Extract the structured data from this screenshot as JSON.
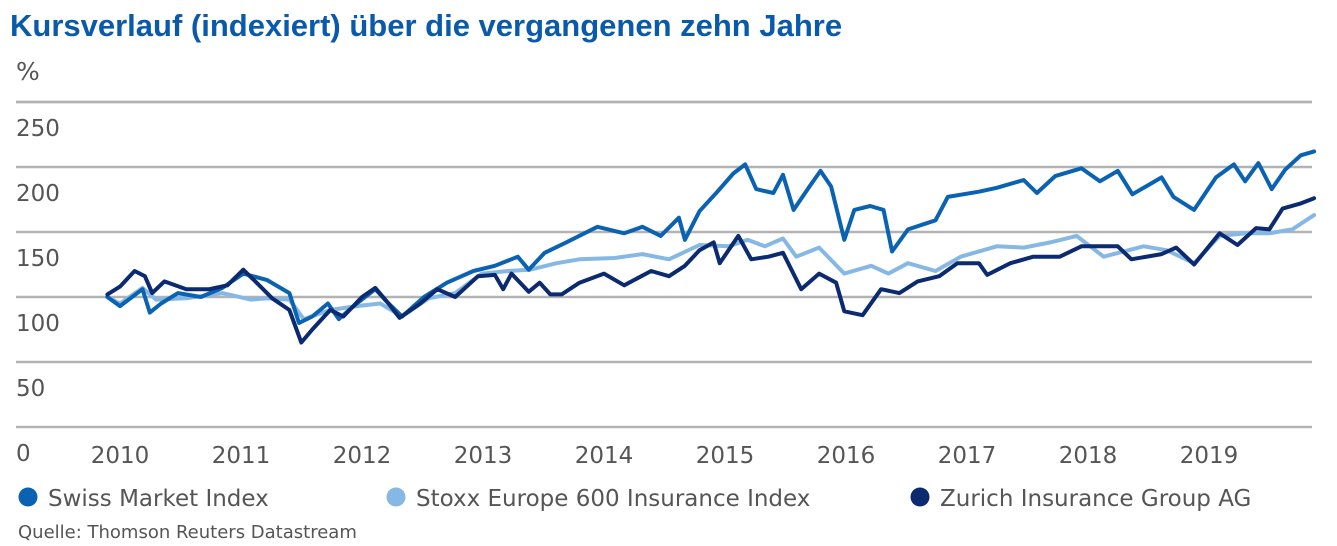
{
  "chart_data": {
    "type": "line",
    "title": "Kursverlauf (indexiert) über die vergangenen zehn Jahre",
    "ylabel": "%",
    "ylim": [
      0,
      250
    ],
    "yticks": [
      0,
      50,
      100,
      150,
      200,
      250
    ],
    "xticks": [
      "2010",
      "2011",
      "2012",
      "2013",
      "2014",
      "2015",
      "2016",
      "2017",
      "2018",
      "2019"
    ],
    "grid": true,
    "legend_position": "bottom",
    "source": "Quelle: Thomson Reuters Datastream",
    "series": [
      {
        "name": "Swiss Market Index",
        "color": "#0a62b3",
        "points": [
          [
            "2009-11-24",
            100
          ],
          [
            "2010-01-01",
            93
          ],
          [
            "2010-03-10",
            106
          ],
          [
            "2010-04-01",
            88
          ],
          [
            "2010-05-05",
            95
          ],
          [
            "2010-06-25",
            103
          ],
          [
            "2010-09-02",
            100
          ],
          [
            "2010-11-06",
            107
          ],
          [
            "2011-01-08",
            118
          ],
          [
            "2011-03-21",
            113
          ],
          [
            "2011-05-27",
            103
          ],
          [
            "2011-06-25",
            80
          ],
          [
            "2011-08-04",
            85
          ],
          [
            "2011-09-20",
            95
          ],
          [
            "2011-10-23",
            83
          ],
          [
            "2011-12-16",
            95
          ],
          [
            "2012-02-10",
            106
          ],
          [
            "2012-03-21",
            95
          ],
          [
            "2012-05-01",
            85
          ],
          [
            "2012-07-06",
            100
          ],
          [
            "2012-09-13",
            111
          ],
          [
            "2012-12-02",
            120
          ],
          [
            "2013-02-06",
            124
          ],
          [
            "2013-04-16",
            131
          ],
          [
            "2013-05-19",
            121
          ],
          [
            "2013-07-06",
            134
          ],
          [
            "2013-09-09",
            142
          ],
          [
            "2013-11-03",
            149
          ],
          [
            "2013-12-12",
            154
          ],
          [
            "2014-03-03",
            149
          ],
          [
            "2014-04-27",
            154
          ],
          [
            "2014-06-21",
            147
          ],
          [
            "2014-08-15",
            161
          ],
          [
            "2014-09-02",
            144
          ],
          [
            "2014-10-16",
            166
          ],
          [
            "2014-12-09",
            181
          ],
          [
            "2015-01-26",
            195
          ],
          [
            "2015-03-03",
            202
          ],
          [
            "2015-04-05",
            183
          ],
          [
            "2015-05-27",
            180
          ],
          [
            "2015-06-25",
            194
          ],
          [
            "2015-07-27",
            167
          ],
          [
            "2015-09-13",
            185
          ],
          [
            "2015-10-16",
            197
          ],
          [
            "2015-11-17",
            185
          ],
          [
            "2015-12-27",
            144
          ],
          [
            "2016-01-26",
            167
          ],
          [
            "2016-03-14",
            170
          ],
          [
            "2016-04-23",
            167
          ],
          [
            "2016-05-19",
            135
          ],
          [
            "2016-07-06",
            152
          ],
          [
            "2016-09-27",
            159
          ],
          [
            "2016-11-03",
            177
          ],
          [
            "2017-02-06",
            181
          ],
          [
            "2017-04-01",
            184
          ],
          [
            "2017-06-21",
            190
          ],
          [
            "2017-07-31",
            180
          ],
          [
            "2017-09-24",
            193
          ],
          [
            "2017-12-12",
            199
          ],
          [
            "2018-02-06",
            189
          ],
          [
            "2018-04-01",
            197
          ],
          [
            "2018-05-15",
            179
          ],
          [
            "2018-08-11",
            192
          ],
          [
            "2018-09-16",
            177
          ],
          [
            "2018-11-17",
            167
          ],
          [
            "2019-01-22",
            192
          ],
          [
            "2019-03-17",
            202
          ],
          [
            "2019-04-20",
            189
          ],
          [
            "2019-05-30",
            203
          ],
          [
            "2019-07-09",
            183
          ],
          [
            "2019-08-19",
            198
          ],
          [
            "2019-10-05",
            209
          ],
          [
            "2019-11-14",
            212
          ]
        ]
      },
      {
        "name": "Stoxx Europe 600 Insurance Index",
        "color": "#86b8e5",
        "points": [
          [
            "2009-11-24",
            100
          ],
          [
            "2010-01-01",
            95
          ],
          [
            "2010-03-10",
            107
          ],
          [
            "2010-04-20",
            98
          ],
          [
            "2010-07-20",
            99
          ],
          [
            "2010-11-06",
            103
          ],
          [
            "2011-01-30",
            98
          ],
          [
            "2011-03-21",
            99
          ],
          [
            "2011-05-27",
            98
          ],
          [
            "2011-07-09",
            83
          ],
          [
            "2011-09-27",
            90
          ],
          [
            "2011-12-16",
            93
          ],
          [
            "2012-02-25",
            95
          ],
          [
            "2012-05-01",
            85
          ],
          [
            "2012-07-20",
            99
          ],
          [
            "2012-10-08",
            103
          ],
          [
            "2012-12-27",
            118
          ],
          [
            "2013-03-17",
            120
          ],
          [
            "2013-05-23",
            121
          ],
          [
            "2013-08-11",
            126
          ],
          [
            "2013-10-19",
            129
          ],
          [
            "2014-02-02",
            130
          ],
          [
            "2014-04-27",
            133
          ],
          [
            "2014-07-16",
            129
          ],
          [
            "2014-10-16",
            140
          ],
          [
            "2015-01-12",
            139
          ],
          [
            "2015-03-10",
            144
          ],
          [
            "2015-05-01",
            139
          ],
          [
            "2015-06-25",
            145
          ],
          [
            "2015-08-04",
            131
          ],
          [
            "2015-10-12",
            138
          ],
          [
            "2015-12-27",
            118
          ],
          [
            "2016-03-17",
            124
          ],
          [
            "2016-05-08",
            118
          ],
          [
            "2016-07-06",
            126
          ],
          [
            "2016-09-27",
            120
          ],
          [
            "2016-12-12",
            131
          ],
          [
            "2017-04-01",
            139
          ],
          [
            "2017-06-21",
            138
          ],
          [
            "2017-09-09",
            142
          ],
          [
            "2017-11-28",
            147
          ],
          [
            "2018-02-17",
            131
          ],
          [
            "2018-06-18",
            139
          ],
          [
            "2018-08-26",
            136
          ],
          [
            "2018-11-17",
            126
          ],
          [
            "2019-02-02",
            147
          ],
          [
            "2019-04-23",
            149
          ],
          [
            "2019-07-02",
            149
          ],
          [
            "2019-09-09",
            152
          ],
          [
            "2019-11-14",
            163
          ]
        ]
      },
      {
        "name": "Zurich Insurance Group AG",
        "color": "#0b2a6f",
        "points": [
          [
            "2009-11-24",
            102
          ],
          [
            "2010-01-01",
            108
          ],
          [
            "2010-02-14",
            120
          ],
          [
            "2010-03-17",
            116
          ],
          [
            "2010-04-08",
            103
          ],
          [
            "2010-05-15",
            112
          ],
          [
            "2010-07-20",
            106
          ],
          [
            "2010-09-27",
            106
          ],
          [
            "2010-11-21",
            109
          ],
          [
            "2011-01-08",
            121
          ],
          [
            "2011-02-17",
            111
          ],
          [
            "2011-04-05",
            99
          ],
          [
            "2011-05-27",
            90
          ],
          [
            "2011-07-02",
            65
          ],
          [
            "2011-08-04",
            75
          ],
          [
            "2011-09-27",
            90
          ],
          [
            "2011-11-06",
            85
          ],
          [
            "2012-01-01",
            100
          ],
          [
            "2012-02-10",
            107
          ],
          [
            "2012-03-21",
            95
          ],
          [
            "2012-04-23",
            84
          ],
          [
            "2012-06-25",
            95
          ],
          [
            "2012-08-15",
            106
          ],
          [
            "2012-10-08",
            100
          ],
          [
            "2012-12-16",
            116
          ],
          [
            "2013-02-06",
            117
          ],
          [
            "2013-03-03",
            106
          ],
          [
            "2013-03-28",
            118
          ],
          [
            "2013-05-19",
            104
          ],
          [
            "2013-06-21",
            111
          ],
          [
            "2013-07-23",
            102
          ],
          [
            "2013-08-26",
            102
          ],
          [
            "2013-10-19",
            111
          ],
          [
            "2014-01-01",
            118
          ],
          [
            "2014-03-03",
            109
          ],
          [
            "2014-05-23",
            120
          ],
          [
            "2014-07-16",
            116
          ],
          [
            "2014-09-02",
            124
          ],
          [
            "2014-10-16",
            136
          ],
          [
            "2014-11-28",
            142
          ],
          [
            "2014-12-16",
            126
          ],
          [
            "2015-02-10",
            147
          ],
          [
            "2015-03-21",
            129
          ],
          [
            "2015-05-12",
            131
          ],
          [
            "2015-06-25",
            134
          ],
          [
            "2015-08-19",
            106
          ],
          [
            "2015-10-12",
            118
          ],
          [
            "2015-12-02",
            111
          ],
          [
            "2015-12-27",
            89
          ],
          [
            "2016-02-20",
            86
          ],
          [
            "2016-04-16",
            106
          ],
          [
            "2016-06-10",
            103
          ],
          [
            "2016-08-04",
            112
          ],
          [
            "2016-10-08",
            116
          ],
          [
            "2016-12-02",
            126
          ],
          [
            "2017-02-06",
            126
          ],
          [
            "2017-03-03",
            117
          ],
          [
            "2017-05-12",
            126
          ],
          [
            "2017-07-20",
            131
          ],
          [
            "2017-10-08",
            131
          ],
          [
            "2017-12-12",
            139
          ],
          [
            "2018-04-01",
            139
          ],
          [
            "2018-05-12",
            129
          ],
          [
            "2018-08-11",
            133
          ],
          [
            "2018-09-24",
            138
          ],
          [
            "2018-11-17",
            125
          ],
          [
            "2019-02-02",
            149
          ],
          [
            "2019-03-28",
            140
          ],
          [
            "2019-05-23",
            153
          ],
          [
            "2019-07-02",
            152
          ],
          [
            "2019-08-11",
            168
          ],
          [
            "2019-10-05",
            172
          ],
          [
            "2019-11-14",
            176
          ]
        ]
      }
    ]
  }
}
